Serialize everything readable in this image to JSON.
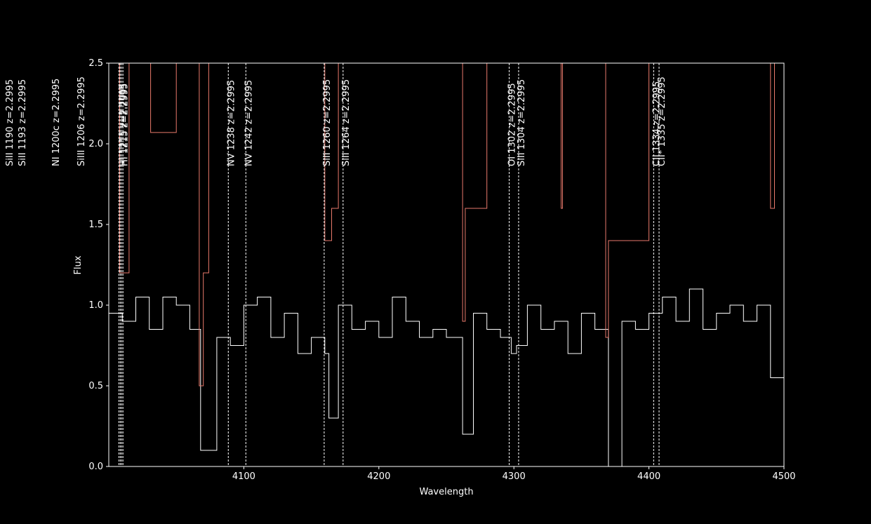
{
  "chart_data": {
    "type": "line",
    "xlabel": "Wavelength",
    "ylabel": "Flux",
    "xlim": [
      4000,
      4500
    ],
    "ylim": [
      0.0,
      2.5
    ],
    "x_ticks": [
      4100,
      4200,
      4300,
      4400,
      4500
    ],
    "y_ticks": [
      0.0,
      0.5,
      1.0,
      1.5,
      2.0,
      2.5
    ],
    "x_tick_labels": [
      "4100",
      "4200",
      "4300",
      "4400",
      "4500"
    ],
    "y_tick_labels": [
      "0.0",
      "0.5",
      "1.0",
      "1.5",
      "2.0",
      "2.5"
    ],
    "grid": false,
    "colors": {
      "background": "#000000",
      "flux": "#ffffff",
      "error": "#e8796b",
      "marker": "#ffffff"
    },
    "series": [
      {
        "style": "step",
        "x": [
          4000,
          4010,
          4020,
          4030,
          4040,
          4050,
          4060,
          4068,
          4072,
          4080,
          4090,
          4100,
          4110,
          4120,
          4130,
          4140,
          4150,
          4160,
          4163,
          4170,
          4180,
          4190,
          4200,
          4210,
          4220,
          4230,
          4240,
          4250,
          4262,
          4270,
          4280,
          4290,
          4298,
          4302,
          4310,
          4320,
          4330,
          4340,
          4350,
          4360,
          4370,
          4380,
          4390,
          4400,
          4410,
          4420,
          4430,
          4440,
          4450,
          4460,
          4470,
          4480,
          4490,
          4500
        ],
        "y": [
          0.95,
          0.9,
          1.05,
          0.85,
          1.05,
          1.0,
          0.85,
          0.1,
          0.1,
          0.8,
          0.75,
          1.0,
          1.05,
          0.8,
          0.95,
          0.7,
          0.8,
          0.7,
          0.3,
          1.0,
          0.85,
          0.9,
          0.8,
          1.05,
          0.9,
          0.8,
          0.85,
          0.8,
          0.2,
          0.95,
          0.85,
          0.8,
          0.7,
          0.75,
          1.0,
          0.85,
          0.9,
          0.7,
          0.95,
          0.85,
          0.0,
          0.9,
          0.85,
          0.95,
          1.05,
          0.9,
          1.1,
          0.85,
          0.95,
          1.0,
          0.9,
          1.0,
          0.55,
          0.65
        ]
      },
      {
        "style": "step",
        "x": [
          4000,
          4007,
          4008,
          4015,
          4030,
          4031,
          4050,
          4060,
          4067,
          4070,
          4074,
          4080,
          4100,
          4120,
          4160,
          4165,
          4170,
          4200,
          4262,
          4264,
          4280,
          4320,
          4335,
          4336,
          4350,
          4368,
          4370,
          4400,
          4440,
          4490,
          4493,
          4500
        ],
        "y": [
          2.5,
          2.5,
          1.2,
          2.5,
          2.5,
          2.07,
          2.5,
          2.5,
          0.5,
          1.2,
          2.5,
          2.5,
          2.5,
          2.5,
          1.4,
          1.6,
          2.5,
          2.5,
          0.9,
          1.6,
          2.5,
          2.5,
          1.6,
          2.5,
          2.5,
          0.8,
          1.4,
          2.5,
          2.5,
          1.6,
          2.5,
          2.5
        ]
      }
    ],
    "annotations": [
      {
        "x": 4007.5,
        "label": "SiII 1190  z=2.2995"
      },
      {
        "x": 4010.5,
        "label": "SiII 1193  z=2.2995"
      },
      {
        "x": 4010.5,
        "label": "NI 1200c  z=2.2995"
      },
      {
        "x": 4010.5,
        "label": "SiIII 1206  z=2.2995"
      },
      {
        "x": 4008.5,
        "label": "HI 1215  z=2.2995"
      },
      {
        "x": 4009.5,
        "label": "HI 1215  z=2.2995"
      },
      {
        "x": 4088.5,
        "label": "NV 1238  z=2.2995"
      },
      {
        "x": 4101.5,
        "label": "NV 1242  z=2.2995"
      },
      {
        "x": 4159.5,
        "label": "SiII 1260  z=2.2995"
      },
      {
        "x": 4173.5,
        "label": "SiII 1264  z=2.2995"
      },
      {
        "x": 4296.5,
        "label": "OI 1302  z=2.2995"
      },
      {
        "x": 4303.5,
        "label": "SiII 1304  z=2.2995"
      },
      {
        "x": 4403.5,
        "label": "CII 1334  z=2.2995"
      },
      {
        "x": 4407.5,
        "label": "CII* 1335  z=2.2995"
      }
    ]
  }
}
